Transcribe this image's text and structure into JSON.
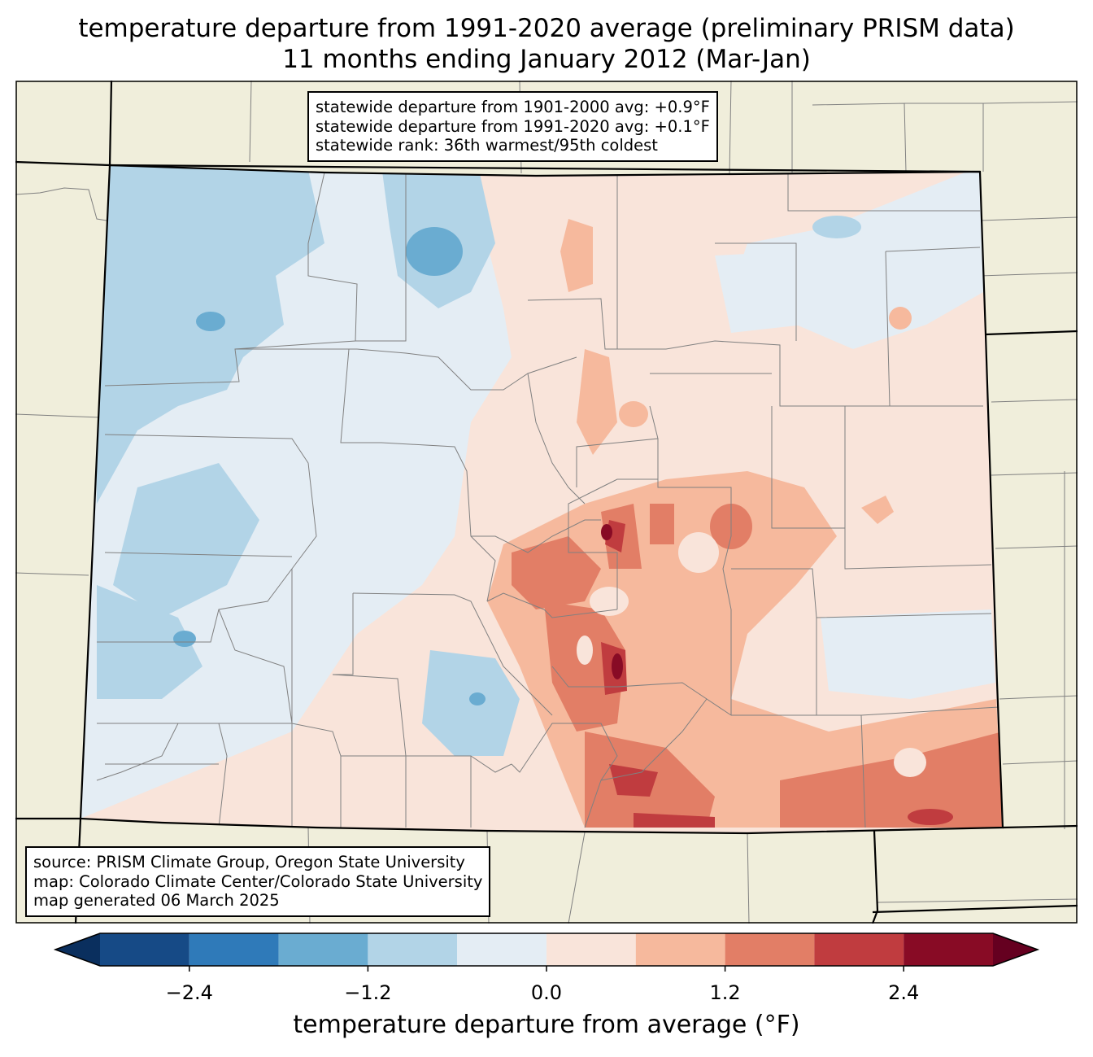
{
  "title_line1": "temperature departure from 1991-2020 average (preliminary PRISM data)",
  "title_line2": "11 months ending January 2012 (Mar-Jan)",
  "stats": {
    "line1": "statewide departure from 1901-2000 avg: +0.9°F",
    "line2": "statewide departure from 1991-2020 avg: +0.1°F",
    "line3": "statewide rank: 36th warmest/95th coldest"
  },
  "source": {
    "line1": "source: PRISM Climate Group, Oregon State University",
    "line2": "map: Colorado Climate Center/Colorado State University",
    "line3": "map generated 06 March 2025"
  },
  "colorbar": {
    "label": "temperature departure from average (°F)",
    "ticks": [
      "−2.4",
      "−1.2",
      "0.0",
      "1.2",
      "2.4"
    ],
    "tick_values": [
      -2.4,
      -1.2,
      0.0,
      1.2,
      2.4
    ],
    "bounds": [
      -3.0,
      -2.4,
      -1.8,
      -1.2,
      -0.6,
      0.0,
      0.6,
      1.2,
      1.8,
      2.4,
      3.0
    ],
    "colors": [
      "#164a86",
      "#2f7ab9",
      "#6aacd1",
      "#b2d4e7",
      "#e4edf4",
      "#f9e4da",
      "#f6b99d",
      "#e27e66",
      "#c03c3f",
      "#880b25"
    ],
    "under_color": "#0a2f5e",
    "over_color": "#650020"
  },
  "map": {
    "land_color": "#f0eedb",
    "border_color": "#000000",
    "county_color": "#808080"
  }
}
